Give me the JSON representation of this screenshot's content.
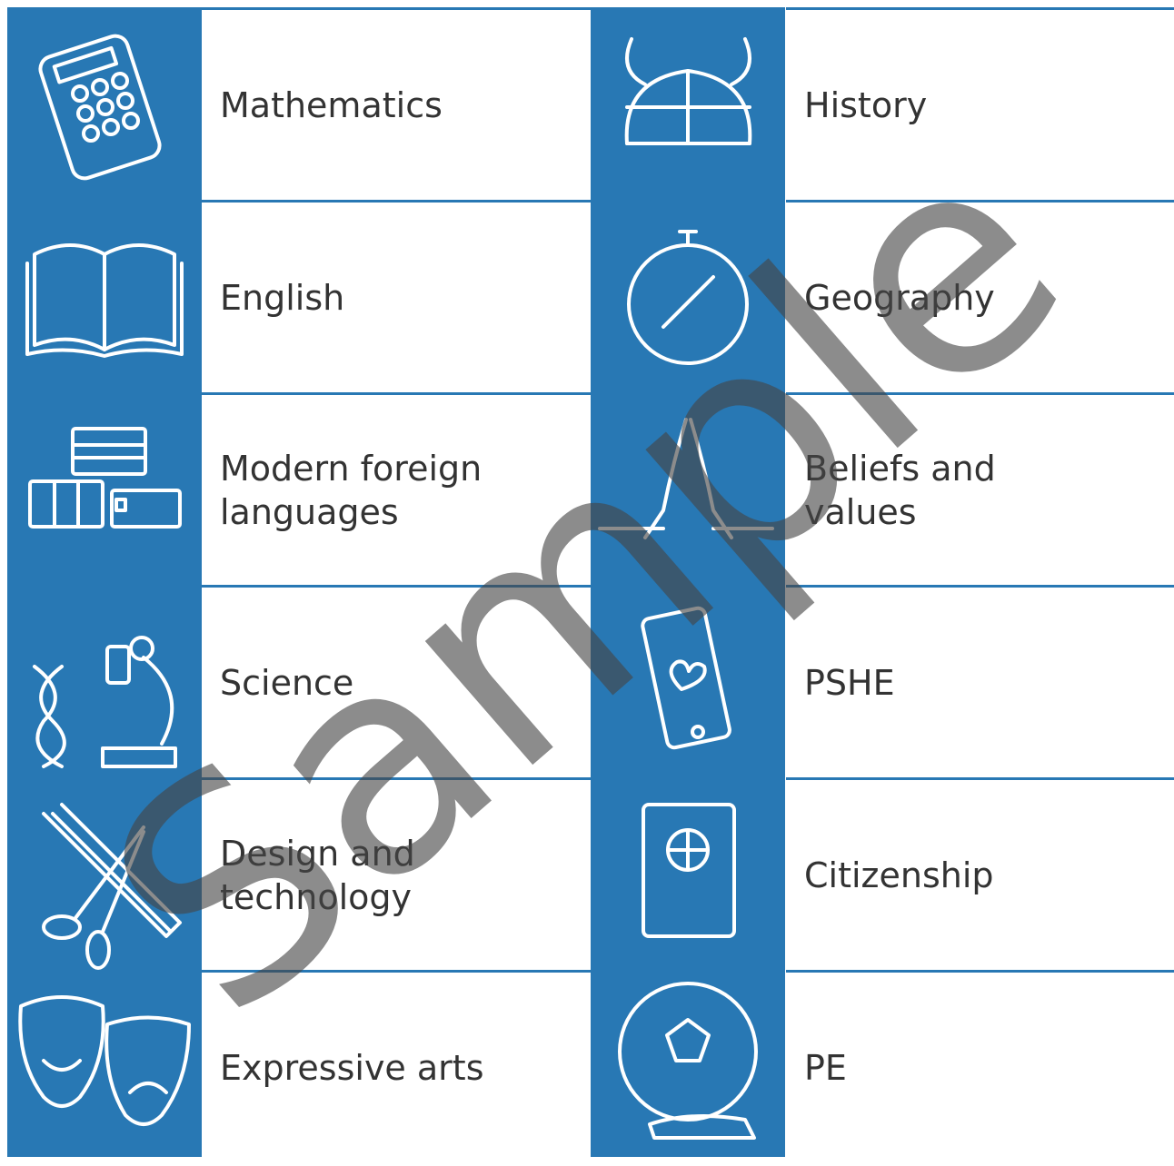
{
  "left": [
    {
      "label": "Mathematics"
    },
    {
      "label": "English"
    },
    {
      "label": "Modern foreign languages"
    },
    {
      "label": "Science"
    },
    {
      "label": "Design and technology"
    },
    {
      "label": "Expressive arts"
    }
  ],
  "right": [
    {
      "label": "History"
    },
    {
      "label": "Geography"
    },
    {
      "label": "Beliefs and values"
    },
    {
      "label": "PSHE"
    },
    {
      "label": "Citizenship"
    },
    {
      "label": "PE"
    }
  ],
  "watermark": "Sample"
}
